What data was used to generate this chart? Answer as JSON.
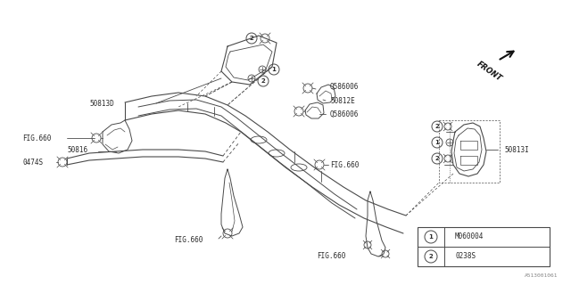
{
  "bg_color": "#ffffff",
  "line_color": "#4a4a4a",
  "text_color": "#2a2a2a",
  "fig_width": 6.4,
  "fig_height": 3.2,
  "dpi": 100,
  "watermark": "A513001061",
  "legend_items": [
    {
      "num": "1",
      "code": "M060004"
    },
    {
      "num": "2",
      "code": "0238S"
    }
  ]
}
